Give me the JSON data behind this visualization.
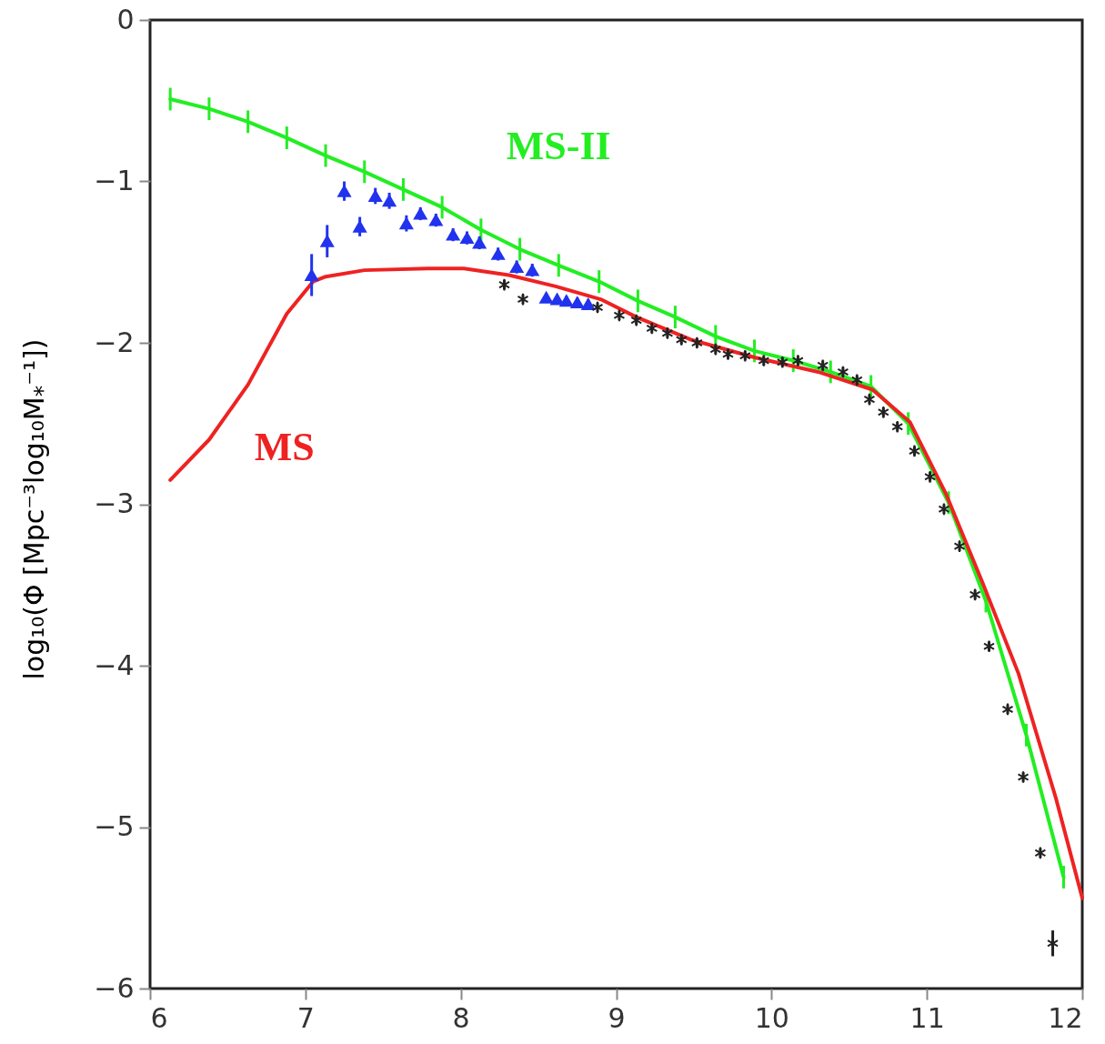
{
  "chart_data": {
    "type": "line",
    "ylabel": "log₁₀(Φ [Mpc⁻³log₁₀M$_{*}$⁻¹])",
    "xlim": [
      6,
      12
    ],
    "ylim": [
      -6,
      0
    ],
    "xticks": [
      6,
      7,
      8,
      9,
      10,
      11,
      12
    ],
    "yticks": [
      -6,
      -5,
      -4,
      -3,
      -2,
      -1,
      0
    ],
    "grid": false,
    "series": [
      {
        "name": "MS-II",
        "color": "#22ee22",
        "marker": "none",
        "x": [
          6.13,
          6.38,
          6.63,
          6.88,
          7.13,
          7.38,
          7.63,
          7.88,
          8.13,
          8.38,
          8.63,
          8.89,
          9.14,
          9.38,
          9.64,
          9.89,
          10.14,
          10.38,
          10.64,
          10.88,
          11.14,
          11.38,
          11.64,
          11.88
        ],
        "values": [
          -0.49,
          -0.55,
          -0.63,
          -0.73,
          -0.84,
          -0.94,
          -1.05,
          -1.16,
          -1.3,
          -1.42,
          -1.52,
          -1.62,
          -1.74,
          -1.84,
          -1.96,
          -2.05,
          -2.11,
          -2.18,
          -2.27,
          -2.5,
          -2.99,
          -3.6,
          -4.43,
          -5.31
        ],
        "errors": [
          0.07,
          0.07,
          0.07,
          0.07,
          0.07,
          0.07,
          0.07,
          0.07,
          0.07,
          0.07,
          0.07,
          0.07,
          0.07,
          0.07,
          0.07,
          0.07,
          0.07,
          0.07,
          0.07,
          0.07,
          0.07,
          0.07,
          0.07,
          0.07
        ]
      },
      {
        "name": "MS",
        "color": "#ee2222",
        "marker": "none",
        "x": [
          6.13,
          6.38,
          6.63,
          6.88,
          7.05,
          7.13,
          7.38,
          7.79,
          8.02,
          8.31,
          8.61,
          8.9,
          9.13,
          9.48,
          9.89,
          10.3,
          10.65,
          10.89,
          11.12,
          11.36,
          11.59,
          11.83,
          12
        ],
        "values": [
          -2.85,
          -2.6,
          -2.26,
          -1.82,
          -1.62,
          -1.59,
          -1.55,
          -1.54,
          -1.54,
          -1.58,
          -1.65,
          -1.73,
          -1.84,
          -1.98,
          -2.09,
          -2.18,
          -2.29,
          -2.49,
          -2.93,
          -3.49,
          -4.05,
          -4.82,
          -5.44
        ]
      },
      {
        "type": "scatter",
        "color": "#2233ee",
        "marker": "triangle",
        "x": [
          7.04,
          7.14,
          7.25,
          7.35,
          7.45,
          7.54,
          7.65,
          7.74,
          7.84,
          7.95,
          8.04,
          8.12,
          8.24,
          8.36,
          8.46,
          8.55,
          8.62,
          8.68,
          8.75,
          8.82
        ],
        "values": [
          -1.58,
          -1.37,
          -1.06,
          -1.28,
          -1.09,
          -1.12,
          -1.26,
          -1.2,
          -1.24,
          -1.33,
          -1.35,
          -1.38,
          -1.45,
          -1.53,
          -1.55,
          -1.72,
          -1.73,
          -1.74,
          -1.75,
          -1.76
        ],
        "errors": [
          0.13,
          0.1,
          0.06,
          0.06,
          0.05,
          0.05,
          0.05,
          0.04,
          0.04,
          0.04,
          0.04,
          0.04,
          0.04,
          0.04,
          0.04,
          0.03,
          0.03,
          0.03,
          0.03,
          0.03
        ]
      },
      {
        "type": "scatter",
        "color": "#222222",
        "marker": "cross",
        "x": [
          8.28,
          8.4,
          8.88,
          9.02,
          9.13,
          9.23,
          9.33,
          9.42,
          9.52,
          9.64,
          9.72,
          9.83,
          9.95,
          10.07,
          10.17,
          10.33,
          10.46,
          10.55,
          10.63,
          10.72,
          10.81,
          10.92,
          11.02,
          11.11,
          11.21,
          11.31,
          11.4,
          11.52,
          11.62,
          11.73,
          11.81
        ],
        "values": [
          -1.64,
          -1.73,
          -1.78,
          -1.83,
          -1.86,
          -1.91,
          -1.94,
          -1.98,
          -2.0,
          -2.04,
          -2.07,
          -2.08,
          -2.11,
          -2.12,
          -2.11,
          -2.14,
          -2.18,
          -2.23,
          -2.35,
          -2.43,
          -2.52,
          -2.67,
          -2.83,
          -3.03,
          -3.26,
          -3.56,
          -3.88,
          -4.27,
          -4.69,
          -5.16,
          -5.72
        ],
        "errors": [
          0.03,
          0.03,
          0.03,
          0.03,
          0.03,
          0.03,
          0.03,
          0.03,
          0.03,
          0.03,
          0.03,
          0.03,
          0.03,
          0.03,
          0.03,
          0.03,
          0.03,
          0.03,
          0.03,
          0.03,
          0.03,
          0.03,
          0.03,
          0.03,
          0.03,
          0.03,
          0.03,
          0.03,
          0.03,
          0.03,
          0.08
        ]
      }
    ]
  }
}
